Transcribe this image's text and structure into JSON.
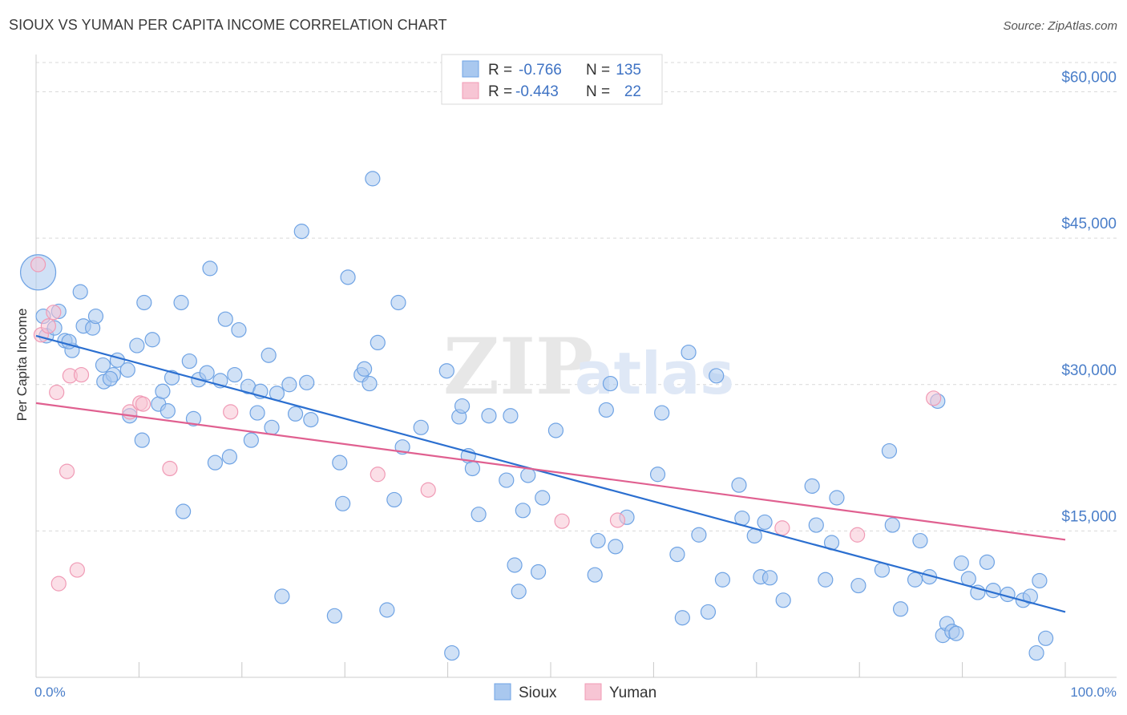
{
  "header": {
    "title": "SIOUX VS YUMAN PER CAPITA INCOME CORRELATION CHART",
    "source": "Source: ZipAtlas.com"
  },
  "watermark": {
    "zip": "ZIP",
    "atlas": "atlas"
  },
  "legend": {
    "r_label": "R =",
    "n_label": "N =",
    "rows": [
      {
        "r": "-0.766",
        "n": "135"
      },
      {
        "r": "-0.443",
        "n": "22"
      }
    ]
  },
  "bottom_legend": [
    "Sioux",
    "Yuman"
  ],
  "colors": {
    "sioux": "#6fa3e4",
    "sioux_fill": "#a9c8ef",
    "sioux_line": "#2b6fd0",
    "yuman": "#f09ab5",
    "yuman_fill": "#f7c5d4",
    "yuman_line": "#e06090",
    "grid": "#d9d9d9",
    "tick_label": "#4a7ec9"
  },
  "chart_data": {
    "type": "scatter",
    "title": "SIOUX VS YUMAN PER CAPITA INCOME CORRELATION CHART",
    "xlabel": "",
    "ylabel": "Per Capita Income",
    "xlim": [
      0,
      100
    ],
    "ylim": [
      0,
      63000
    ],
    "x_tick_labels": [
      "0.0%",
      "100.0%"
    ],
    "y_ticks": [
      15000,
      30000,
      45000,
      60000
    ],
    "y_tick_labels": [
      "$15,000",
      "$30,000",
      "$45,000",
      "$60,000"
    ],
    "grid": true,
    "legend_position": "top-center",
    "series": [
      {
        "name": "Sioux",
        "r": -0.766,
        "n": 135,
        "trend": {
          "x": [
            0,
            100
          ],
          "y": [
            35000,
            6700
          ]
        },
        "points": [
          [
            0.2,
            41500
          ],
          [
            0.7,
            37000
          ],
          [
            1.0,
            35000
          ],
          [
            1.8,
            35800
          ],
          [
            2.2,
            37500
          ],
          [
            2.8,
            34500
          ],
          [
            3.5,
            33500
          ],
          [
            4.3,
            39500
          ],
          [
            4.6,
            36000
          ],
          [
            5.5,
            35800
          ],
          [
            5.8,
            37000
          ],
          [
            3.2,
            34400
          ],
          [
            6.5,
            32000
          ],
          [
            6.6,
            30300
          ],
          [
            7.5,
            31000
          ],
          [
            7.9,
            32500
          ],
          [
            7.2,
            30600
          ],
          [
            8.9,
            31500
          ],
          [
            9.1,
            26800
          ],
          [
            9.8,
            34000
          ],
          [
            10.3,
            24300
          ],
          [
            10.5,
            38400
          ],
          [
            11.3,
            34600
          ],
          [
            11.9,
            28000
          ],
          [
            12.3,
            29300
          ],
          [
            12.8,
            27300
          ],
          [
            13.2,
            30700
          ],
          [
            14.1,
            38400
          ],
          [
            14.3,
            17000
          ],
          [
            14.9,
            32400
          ],
          [
            15.3,
            26500
          ],
          [
            15.8,
            30500
          ],
          [
            16.6,
            31200
          ],
          [
            16.9,
            41900
          ],
          [
            17.4,
            22000
          ],
          [
            17.9,
            30400
          ],
          [
            18.4,
            36700
          ],
          [
            18.8,
            22600
          ],
          [
            19.3,
            31000
          ],
          [
            19.7,
            35600
          ],
          [
            20.6,
            29800
          ],
          [
            20.9,
            24300
          ],
          [
            21.5,
            27100
          ],
          [
            21.8,
            29300
          ],
          [
            22.6,
            33000
          ],
          [
            22.9,
            25600
          ],
          [
            23.4,
            29100
          ],
          [
            23.9,
            8300
          ],
          [
            24.6,
            30000
          ],
          [
            25.2,
            27000
          ],
          [
            25.8,
            45700
          ],
          [
            26.3,
            30200
          ],
          [
            26.7,
            26400
          ],
          [
            29.0,
            6300
          ],
          [
            29.5,
            22000
          ],
          [
            29.8,
            17800
          ],
          [
            30.3,
            41000
          ],
          [
            31.6,
            31000
          ],
          [
            31.9,
            31600
          ],
          [
            32.4,
            30100
          ],
          [
            32.7,
            51100
          ],
          [
            33.2,
            34300
          ],
          [
            34.1,
            6900
          ],
          [
            34.8,
            18200
          ],
          [
            35.2,
            38400
          ],
          [
            35.6,
            23600
          ],
          [
            37.4,
            25600
          ],
          [
            39.9,
            31400
          ],
          [
            40.4,
            2500
          ],
          [
            41.1,
            26700
          ],
          [
            41.4,
            27800
          ],
          [
            42.0,
            22700
          ],
          [
            42.4,
            21400
          ],
          [
            43.0,
            16700
          ],
          [
            44.0,
            26800
          ],
          [
            45.7,
            20200
          ],
          [
            46.1,
            26800
          ],
          [
            46.5,
            11500
          ],
          [
            46.9,
            8800
          ],
          [
            47.3,
            17100
          ],
          [
            47.8,
            20700
          ],
          [
            48.8,
            10800
          ],
          [
            49.2,
            18400
          ],
          [
            50.5,
            25300
          ],
          [
            54.3,
            10500
          ],
          [
            54.6,
            14000
          ],
          [
            55.4,
            27400
          ],
          [
            55.8,
            30100
          ],
          [
            56.3,
            13400
          ],
          [
            57.4,
            16400
          ],
          [
            60.4,
            20800
          ],
          [
            60.8,
            27100
          ],
          [
            62.3,
            12600
          ],
          [
            62.8,
            6100
          ],
          [
            63.4,
            33300
          ],
          [
            64.4,
            14600
          ],
          [
            65.3,
            6700
          ],
          [
            66.1,
            30900
          ],
          [
            66.7,
            10000
          ],
          [
            68.3,
            19700
          ],
          [
            68.6,
            16300
          ],
          [
            69.8,
            14500
          ],
          [
            70.4,
            10300
          ],
          [
            70.8,
            15900
          ],
          [
            71.3,
            10200
          ],
          [
            72.6,
            7900
          ],
          [
            75.4,
            19600
          ],
          [
            75.8,
            15600
          ],
          [
            76.7,
            10000
          ],
          [
            77.3,
            13800
          ],
          [
            77.8,
            18400
          ],
          [
            79.9,
            9400
          ],
          [
            82.2,
            11000
          ],
          [
            82.9,
            23200
          ],
          [
            83.2,
            15600
          ],
          [
            84.0,
            7000
          ],
          [
            85.4,
            10000
          ],
          [
            85.9,
            14000
          ],
          [
            86.8,
            10300
          ],
          [
            87.6,
            28300
          ],
          [
            88.1,
            4300
          ],
          [
            88.5,
            5500
          ],
          [
            89.0,
            4700
          ],
          [
            89.4,
            4500
          ],
          [
            89.9,
            11700
          ],
          [
            90.6,
            10100
          ],
          [
            91.5,
            8700
          ],
          [
            92.4,
            11800
          ],
          [
            93.0,
            8900
          ],
          [
            94.4,
            8500
          ],
          [
            95.9,
            7900
          ],
          [
            96.6,
            8300
          ],
          [
            97.2,
            2500
          ],
          [
            97.5,
            9900
          ],
          [
            98.1,
            4000
          ]
        ]
      },
      {
        "name": "Yuman",
        "r": -0.443,
        "n": 22,
        "trend": {
          "x": [
            0,
            100
          ],
          "y": [
            28100,
            14100
          ]
        },
        "points": [
          [
            0.2,
            42300
          ],
          [
            0.5,
            35100
          ],
          [
            1.2,
            36000
          ],
          [
            1.7,
            37400
          ],
          [
            2.0,
            29200
          ],
          [
            3.0,
            21100
          ],
          [
            3.3,
            30900
          ],
          [
            4.0,
            11000
          ],
          [
            4.4,
            31000
          ],
          [
            2.2,
            9600
          ],
          [
            9.1,
            27200
          ],
          [
            10.1,
            28100
          ],
          [
            10.4,
            28000
          ],
          [
            13.0,
            21400
          ],
          [
            18.9,
            27200
          ],
          [
            33.2,
            20800
          ],
          [
            38.1,
            19200
          ],
          [
            51.1,
            16000
          ],
          [
            56.5,
            16100
          ],
          [
            72.5,
            15300
          ],
          [
            79.8,
            14600
          ],
          [
            87.2,
            28600
          ]
        ]
      }
    ]
  }
}
